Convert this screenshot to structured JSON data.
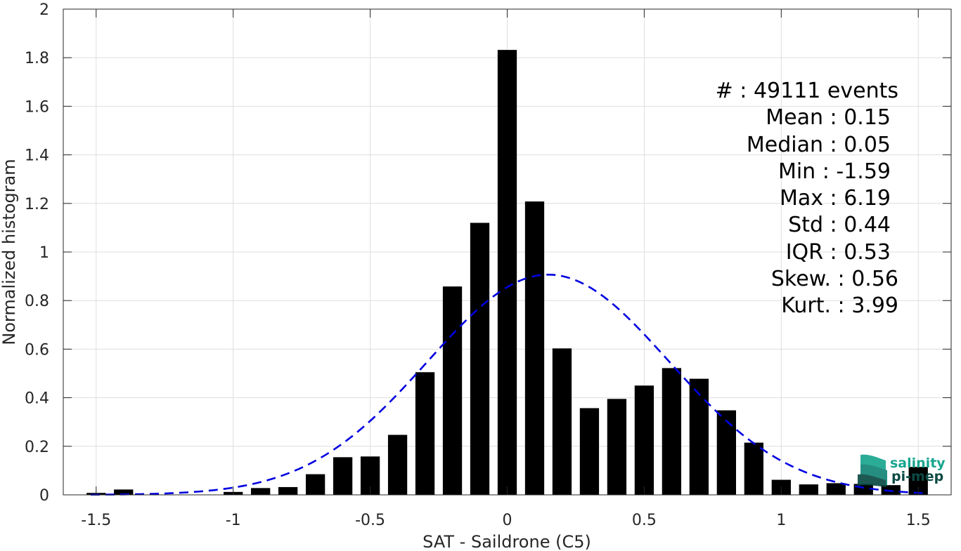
{
  "chart_data": {
    "type": "bar",
    "xlabel": "SAT - Saildrone (C5)",
    "ylabel": "Normalized histogram",
    "xlim": [
      -1.62,
      1.62
    ],
    "ylim": [
      0,
      2
    ],
    "xticks": [
      -1.5,
      -1,
      -0.5,
      0,
      0.5,
      1,
      1.5
    ],
    "xtick_labels": [
      "-1.5",
      "-1",
      "-0.5",
      "0",
      "0.5",
      "1",
      "1.5"
    ],
    "yticks": [
      0,
      0.2,
      0.4,
      0.6,
      0.8,
      1,
      1.2,
      1.4,
      1.6,
      1.8,
      2
    ],
    "ytick_labels": [
      "0",
      "0.2",
      "0.4",
      "0.6",
      "0.8",
      "1",
      "1.2",
      "1.4",
      "1.6",
      "1.8",
      "2"
    ],
    "grid": true,
    "bar_width": 0.07,
    "bar_color": "#000000",
    "bars": {
      "x": [
        -1.5,
        -1.4,
        -1.0,
        -0.9,
        -0.8,
        -0.7,
        -0.6,
        -0.5,
        -0.4,
        -0.3,
        -0.2,
        -0.1,
        0.0,
        0.1,
        0.2,
        0.3,
        0.4,
        0.5,
        0.6,
        0.7,
        0.8,
        0.9,
        1.0,
        1.1,
        1.2,
        1.3,
        1.4,
        1.5
      ],
      "values": [
        0.008,
        0.022,
        0.012,
        0.028,
        0.032,
        0.085,
        0.155,
        0.158,
        0.247,
        0.505,
        0.858,
        1.12,
        1.832,
        1.208,
        0.603,
        0.357,
        0.395,
        0.45,
        0.522,
        0.478,
        0.348,
        0.215,
        0.062,
        0.043,
        0.048,
        0.045,
        0.04,
        0.115
      ]
    },
    "fit_curve": {
      "style": "dashed",
      "color": "#0000e0",
      "mean": 0.15,
      "std": 0.44
    }
  },
  "stats": {
    "events": "#  : 49111 events",
    "mean": "Mean : 0.15",
    "median": "Median : 0.05",
    "min": "Min : -1.59",
    "max": "Max : 6.19",
    "std": "Std : 0.44",
    "iqr": "IQR : 0.53",
    "skew": "Skew. : 0.56",
    "kurt": "Kurt. : 3.99"
  },
  "logo": {
    "line1": "salinity",
    "line2": "pi-mep",
    "color_primary": "#1aa58f",
    "color_secondary": "#0b4a44"
  }
}
